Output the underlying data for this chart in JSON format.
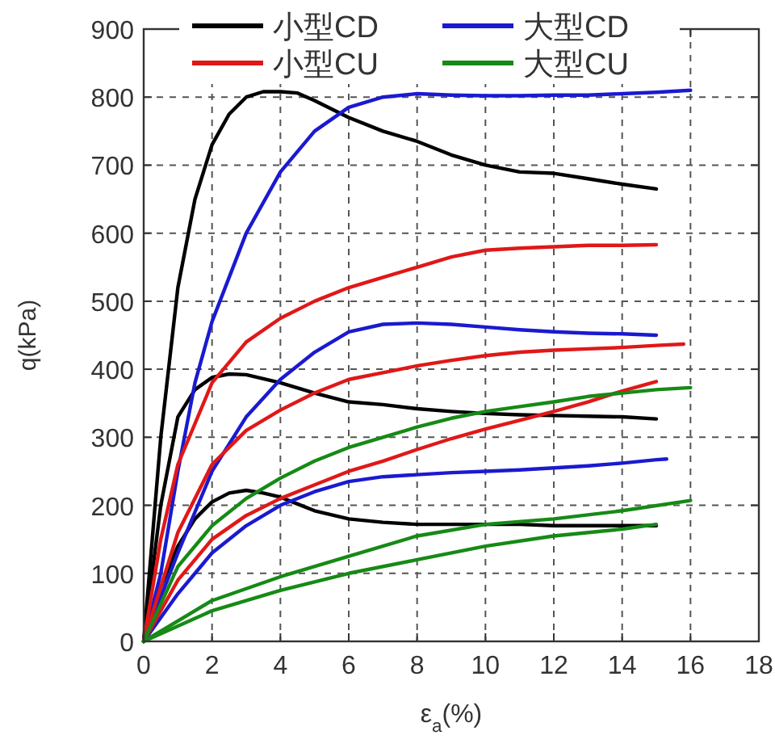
{
  "chart_data": {
    "type": "line",
    "xlabel": "ε$_{a}$(%)",
    "ylabel": "q(kPa)",
    "xlim": [
      0,
      18
    ],
    "ylim": [
      0,
      900
    ],
    "xticks": [
      0,
      2,
      4,
      6,
      8,
      10,
      12,
      14,
      16,
      18
    ],
    "yticks": [
      0,
      100,
      200,
      300,
      400,
      500,
      600,
      700,
      800,
      900
    ],
    "grid": true,
    "legend": "top",
    "marker": "none",
    "line_style": "solid",
    "series": [
      {
        "name": "小型CD",
        "color": "#000000",
        "x": [
          0,
          0.5,
          1,
          1.5,
          2,
          2.5,
          3,
          3.5,
          4,
          4.5,
          5,
          6,
          7,
          8,
          9,
          10,
          11,
          12,
          13,
          14,
          15
        ],
        "values": [
          0,
          300,
          520,
          650,
          730,
          775,
          800,
          808,
          808,
          806,
          795,
          770,
          750,
          735,
          715,
          700,
          690,
          688,
          680,
          672,
          665
        ]
      },
      {
        "color": "#000000",
        "x": [
          0,
          0.5,
          1,
          1.5,
          2,
          2.5,
          3,
          4,
          5,
          6,
          7,
          8,
          9,
          10,
          11,
          12,
          13,
          14,
          15
        ],
        "values": [
          0,
          200,
          330,
          370,
          388,
          393,
          392,
          380,
          365,
          352,
          348,
          342,
          338,
          335,
          333,
          332,
          331,
          330,
          327
        ]
      },
      {
        "color": "#000000",
        "x": [
          0,
          0.5,
          1,
          1.5,
          2,
          2.5,
          3,
          3.5,
          4,
          4.5,
          5,
          6,
          7,
          8,
          9,
          10,
          11,
          12,
          13,
          14,
          15
        ],
        "values": [
          0,
          80,
          140,
          180,
          205,
          218,
          222,
          218,
          212,
          202,
          192,
          180,
          175,
          172,
          172,
          172,
          172,
          170,
          170,
          170,
          170
        ]
      },
      {
        "name": "大型CD",
        "color": "#1a1ad0",
        "x": [
          0,
          0.5,
          1,
          1.5,
          2,
          3,
          4,
          5,
          6,
          7,
          8,
          9,
          10,
          11,
          12,
          13,
          14,
          15,
          16
        ],
        "values": [
          0,
          100,
          250,
          380,
          470,
          600,
          690,
          750,
          785,
          800,
          805,
          803,
          802,
          802,
          803,
          803,
          805,
          807,
          810
        ]
      },
      {
        "color": "#1a1ad0",
        "x": [
          0,
          1,
          2,
          3,
          4,
          5,
          6,
          7,
          8,
          9,
          10,
          11,
          12,
          13,
          14,
          15
        ],
        "values": [
          0,
          130,
          250,
          330,
          385,
          425,
          455,
          466,
          468,
          466,
          462,
          458,
          455,
          453,
          452,
          450
        ]
      },
      {
        "color": "#1a1ad0",
        "x": [
          0,
          1,
          2,
          3,
          4,
          5,
          6,
          7,
          8,
          9,
          10,
          11,
          12,
          13,
          14,
          15,
          15.3
        ],
        "values": [
          0,
          70,
          130,
          170,
          200,
          220,
          235,
          242,
          245,
          248,
          250,
          252,
          255,
          258,
          262,
          267,
          268
        ]
      },
      {
        "name": "小型CU",
        "color": "#e01818",
        "x": [
          0,
          0.5,
          1,
          2,
          3,
          4,
          5,
          6,
          7,
          8,
          9,
          10,
          11,
          12,
          13,
          14,
          15
        ],
        "values": [
          0,
          150,
          260,
          380,
          440,
          475,
          500,
          520,
          535,
          550,
          565,
          575,
          578,
          580,
          582,
          582,
          583
        ]
      },
      {
        "color": "#e01818",
        "x": [
          0,
          1,
          2,
          3,
          4,
          5,
          6,
          7,
          8,
          9,
          10,
          11,
          12,
          13,
          14,
          15,
          15.8
        ],
        "values": [
          0,
          160,
          260,
          310,
          340,
          365,
          385,
          395,
          405,
          413,
          420,
          425,
          428,
          430,
          432,
          435,
          437
        ]
      },
      {
        "color": "#e01818",
        "x": [
          0,
          1,
          2,
          3,
          4,
          5,
          6,
          7,
          8,
          9,
          10,
          11,
          12,
          13,
          14,
          15
        ],
        "values": [
          0,
          90,
          150,
          185,
          210,
          230,
          250,
          265,
          282,
          298,
          312,
          325,
          338,
          352,
          368,
          382
        ]
      },
      {
        "name": "大型CU",
        "color": "#168a16",
        "x": [
          0,
          1,
          2,
          3,
          4,
          5,
          6,
          7,
          8,
          9,
          10,
          11,
          12,
          13,
          14,
          15,
          16
        ],
        "values": [
          0,
          110,
          170,
          210,
          240,
          265,
          285,
          300,
          315,
          328,
          338,
          345,
          352,
          360,
          365,
          370,
          373
        ]
      },
      {
        "color": "#168a16",
        "x": [
          0,
          2,
          4,
          6,
          8,
          10,
          12,
          14,
          16
        ],
        "values": [
          0,
          60,
          95,
          125,
          155,
          172,
          180,
          192,
          207
        ]
      },
      {
        "color": "#168a16",
        "x": [
          0,
          2,
          4,
          6,
          8,
          10,
          12,
          14,
          15
        ],
        "values": [
          0,
          45,
          75,
          100,
          120,
          140,
          155,
          165,
          172
        ]
      }
    ]
  }
}
